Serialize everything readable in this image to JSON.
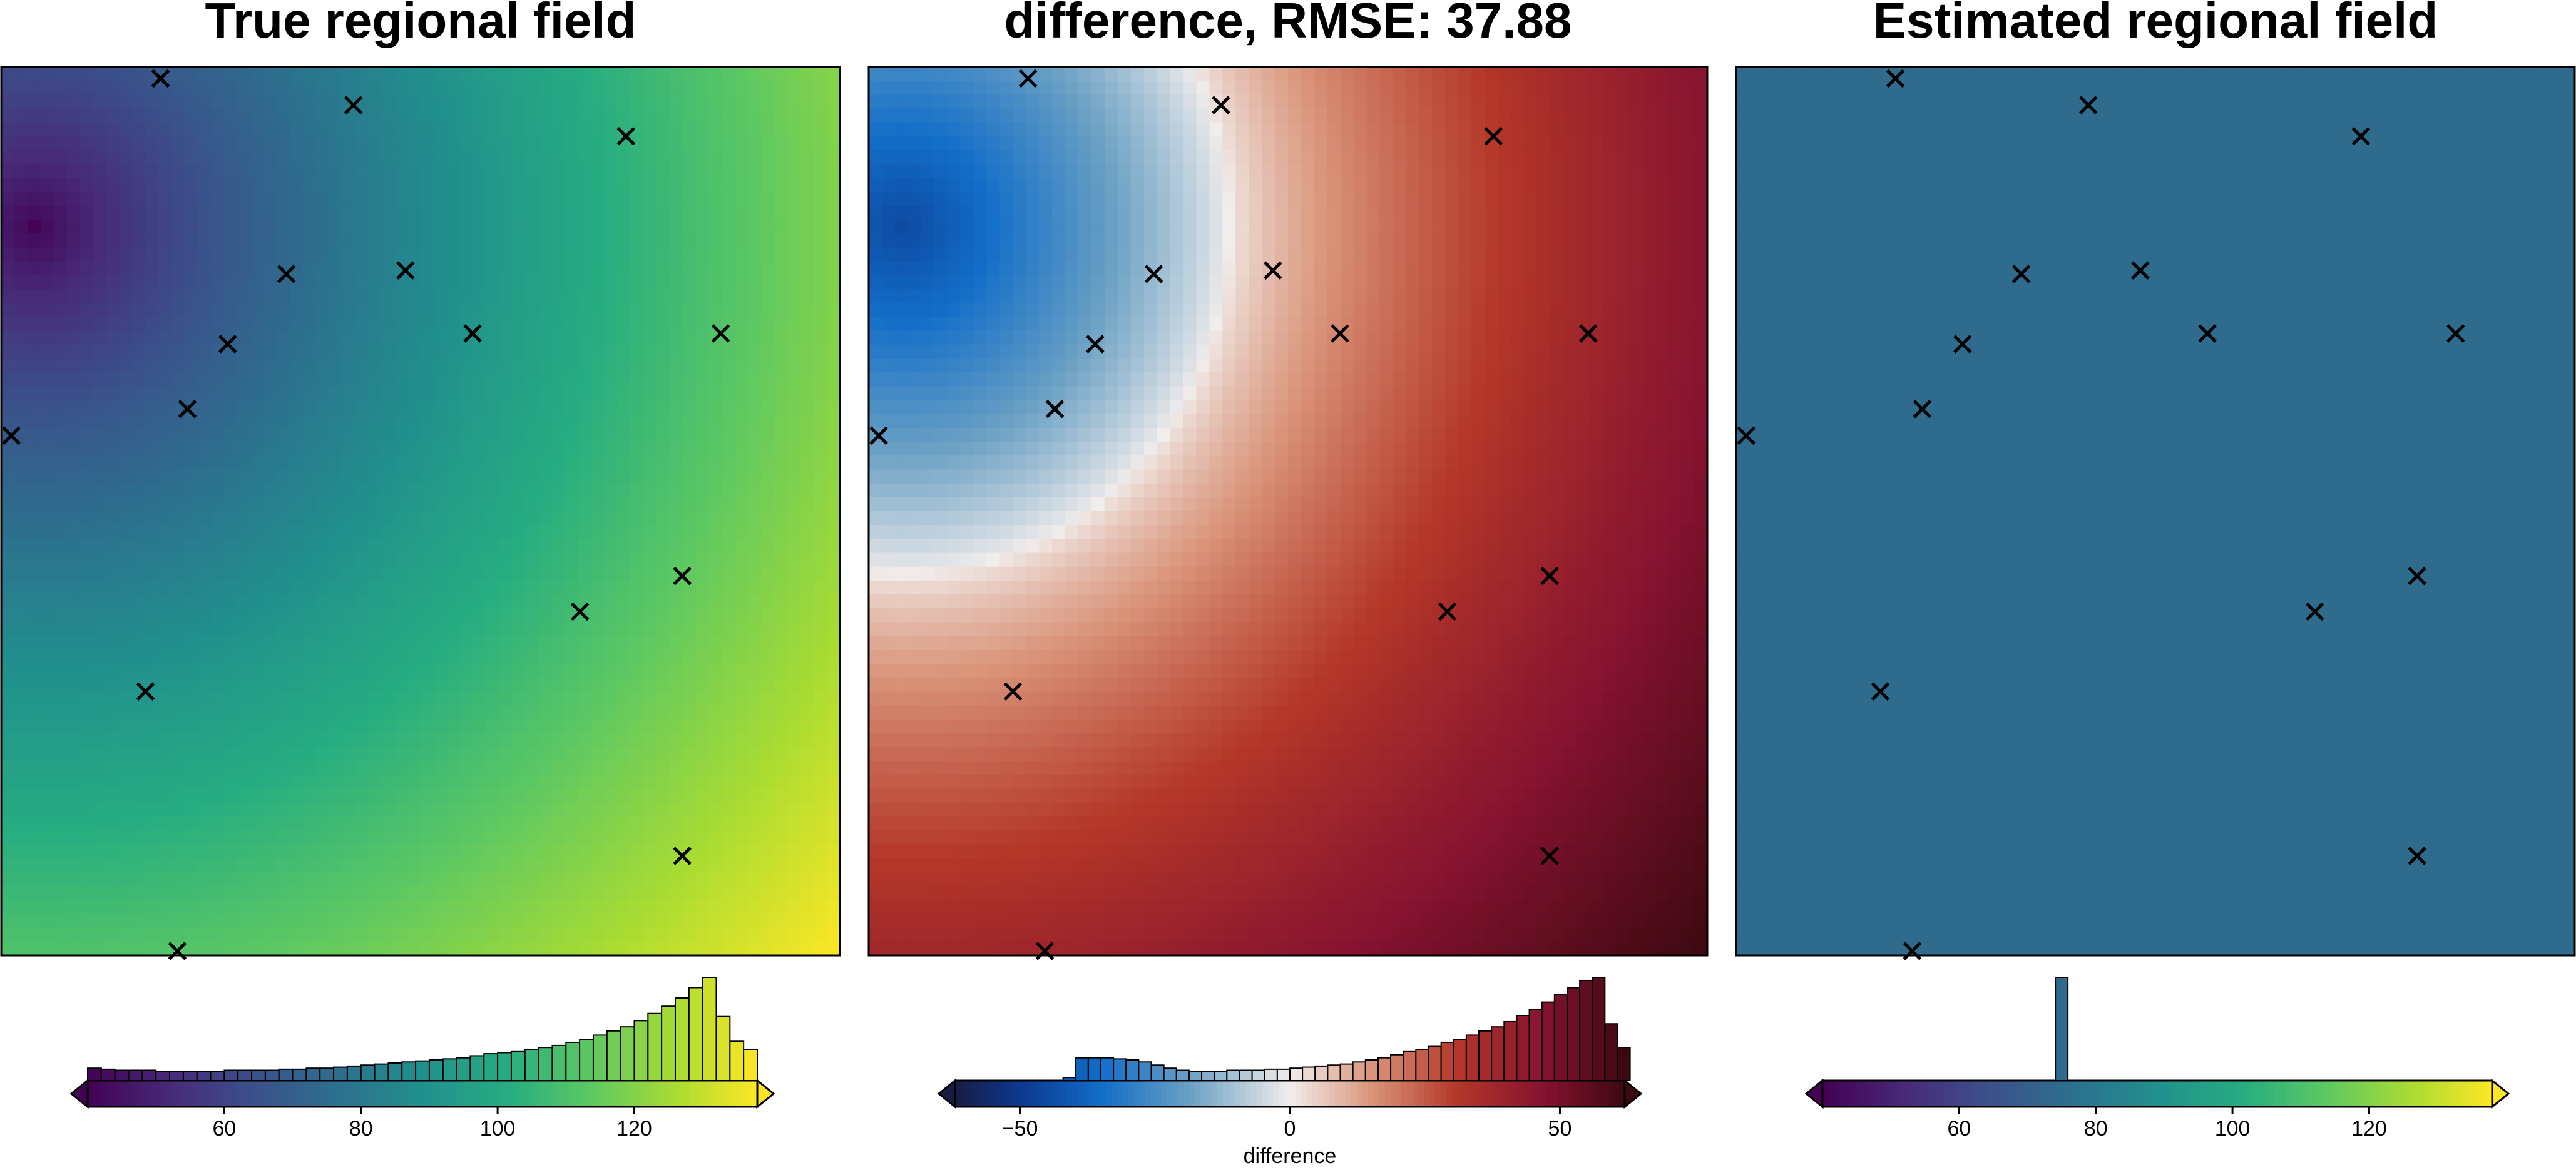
{
  "chart_data": [
    {
      "type": "heatmap",
      "title": "True regional field",
      "colormap": "viridis",
      "clim": [
        40,
        138
      ],
      "colorbar": {
        "ticks": [
          60,
          80,
          100,
          120
        ],
        "label": "",
        "extend": "both"
      },
      "histogram": [
        0.12,
        0.11,
        0.1,
        0.1,
        0.1,
        0.09,
        0.09,
        0.09,
        0.09,
        0.09,
        0.1,
        0.1,
        0.1,
        0.1,
        0.11,
        0.11,
        0.12,
        0.12,
        0.13,
        0.14,
        0.15,
        0.16,
        0.17,
        0.18,
        0.19,
        0.2,
        0.21,
        0.22,
        0.24,
        0.26,
        0.27,
        0.28,
        0.3,
        0.32,
        0.34,
        0.37,
        0.4,
        0.44,
        0.48,
        0.52,
        0.58,
        0.65,
        0.72,
        0.8,
        0.9,
        1.0,
        0.62,
        0.38,
        0.3
      ],
      "field_model": {
        "min": [
          0.04,
          0.18
        ],
        "max": [
          1.0,
          1.0
        ]
      }
    },
    {
      "type": "heatmap",
      "title": "difference, RMSE: 37.88",
      "colormap": "balance",
      "clim": [
        -62,
        62
      ],
      "colorbar": {
        "ticks": [
          -50,
          0,
          50
        ],
        "label": "difference",
        "extend": "both"
      },
      "histogram": [
        0.03,
        0.22,
        0.22,
        0.22,
        0.21,
        0.2,
        0.18,
        0.15,
        0.12,
        0.1,
        0.09,
        0.09,
        0.09,
        0.1,
        0.1,
        0.1,
        0.11,
        0.11,
        0.12,
        0.13,
        0.14,
        0.15,
        0.16,
        0.18,
        0.2,
        0.22,
        0.25,
        0.28,
        0.3,
        0.33,
        0.37,
        0.4,
        0.44,
        0.48,
        0.52,
        0.57,
        0.63,
        0.69,
        0.76,
        0.83,
        0.9,
        0.97,
        1.0,
        0.55,
        0.32
      ],
      "hist_range": [
        -42,
        63
      ],
      "field_model": {
        "min": [
          0.04,
          0.18
        ],
        "max": [
          1.0,
          1.0
        ],
        "zero_radius": 0.39
      }
    },
    {
      "type": "heatmap",
      "title": "Estimated regional field",
      "colormap": "viridis",
      "clim": [
        40,
        138
      ],
      "colorbar": {
        "ticks": [
          60,
          80,
          100,
          120
        ],
        "label": "",
        "extend": "both"
      },
      "constant_value": 75,
      "histogram_value": 75
    }
  ],
  "points": [
    [
      0.19,
      0.013
    ],
    [
      0.42,
      0.043
    ],
    [
      0.745,
      0.078
    ],
    [
      0.34,
      0.233
    ],
    [
      0.482,
      0.229
    ],
    [
      0.27,
      0.312
    ],
    [
      0.562,
      0.3
    ],
    [
      0.858,
      0.3
    ],
    [
      0.222,
      0.385
    ],
    [
      0.012,
      0.415
    ],
    [
      0.812,
      0.573
    ],
    [
      0.69,
      0.613
    ],
    [
      0.172,
      0.703
    ],
    [
      0.812,
      0.888
    ],
    [
      0.21,
      0.995
    ]
  ],
  "colors": {
    "marker": "#000000",
    "frame": "#000000",
    "background": "#ffffff"
  }
}
